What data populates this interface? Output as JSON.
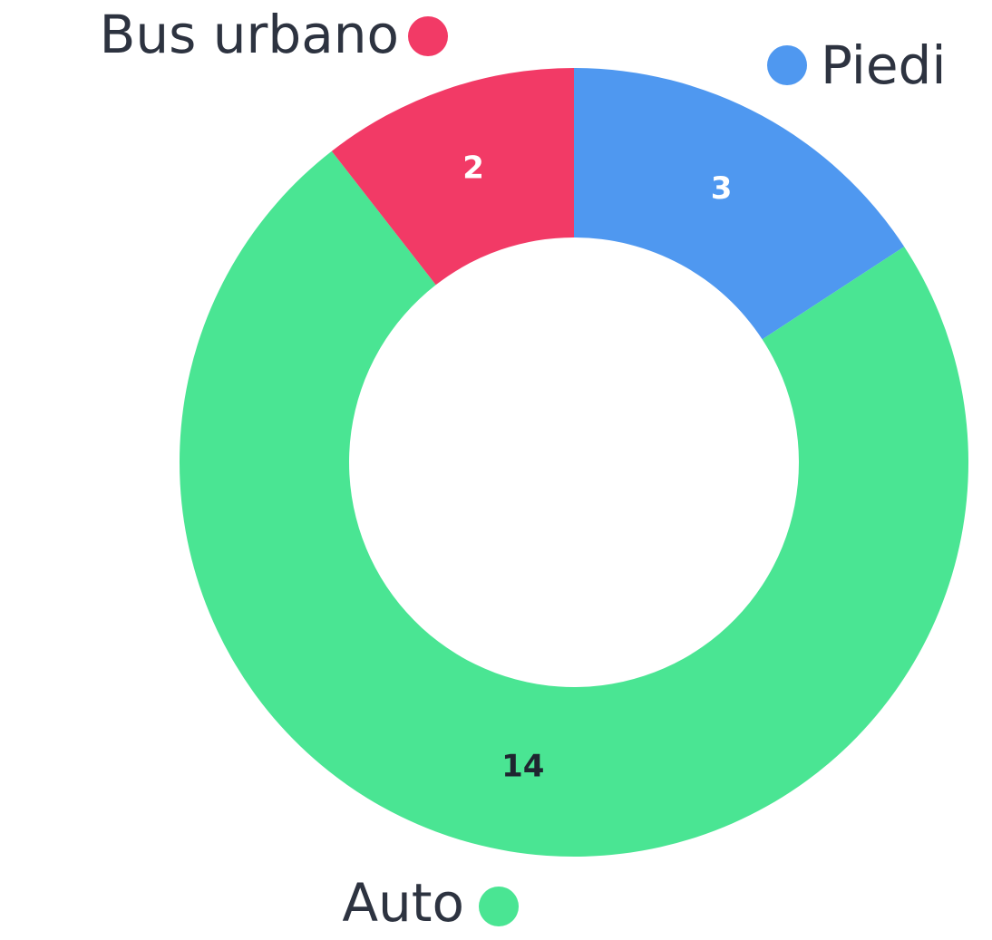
{
  "chart_data": {
    "type": "donut",
    "categories": [
      "Piedi",
      "Auto",
      "Bus urbano"
    ],
    "values": [
      3,
      14,
      2
    ],
    "colors": [
      "#4f98f0",
      "#4ae593",
      "#f23a66"
    ],
    "label_colors": [
      "#ffffff",
      "#1f2530",
      "#ffffff"
    ]
  }
}
